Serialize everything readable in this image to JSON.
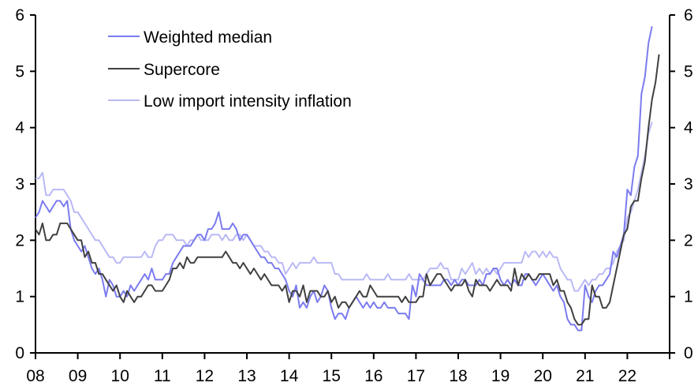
{
  "chart_data": {
    "type": "line",
    "title": "",
    "xlabel": "",
    "ylabel": "",
    "ylim": [
      0,
      6
    ],
    "y_ticks": [
      "0",
      "1",
      "2",
      "3",
      "4",
      "5",
      "6"
    ],
    "y_ticks_right": [
      "0",
      "1",
      "2",
      "3",
      "4",
      "5",
      "6"
    ],
    "x_tick_labels": [
      "08",
      "09",
      "10",
      "11",
      "12",
      "13",
      "14",
      "15",
      "16",
      "17",
      "18",
      "19",
      "20",
      "21",
      "22"
    ],
    "x_range": [
      2008,
      2023
    ],
    "x_start": 2008.0,
    "x_step_months": 1,
    "grid": false,
    "legend_position": "top-left",
    "series": [
      {
        "name": "Weighted median",
        "color": "#7B7BEF",
        "values": [
          2.4,
          2.5,
          2.7,
          2.6,
          2.5,
          2.6,
          2.7,
          2.7,
          2.6,
          2.7,
          2.2,
          2.0,
          1.9,
          1.8,
          1.9,
          1.7,
          1.5,
          1.4,
          1.5,
          1.3,
          1.0,
          1.3,
          1.2,
          1.0,
          1.0,
          1.1,
          1.0,
          1.2,
          1.1,
          1.2,
          1.3,
          1.4,
          1.3,
          1.5,
          1.3,
          1.3,
          1.3,
          1.4,
          1.4,
          1.6,
          1.7,
          1.8,
          1.9,
          1.9,
          1.9,
          2.0,
          2.1,
          2.1,
          2.0,
          2.2,
          2.2,
          2.3,
          2.5,
          2.2,
          2.2,
          2.2,
          2.3,
          2.2,
          2.0,
          2.1,
          2.1,
          2.0,
          1.9,
          1.8,
          1.7,
          1.7,
          1.6,
          1.6,
          1.5,
          1.5,
          1.4,
          1.3,
          1.1,
          1.0,
          1.2,
          0.8,
          0.9,
          0.8,
          1.0,
          1.1,
          0.9,
          1.0,
          1.2,
          1.1,
          0.8,
          0.6,
          0.7,
          0.7,
          0.6,
          0.8,
          0.9,
          1.0,
          0.9,
          0.8,
          0.9,
          0.8,
          0.9,
          0.8,
          0.8,
          0.9,
          0.8,
          0.8,
          0.8,
          0.7,
          0.7,
          0.7,
          0.6,
          1.2,
          1.0,
          1.4,
          1.3,
          1.2,
          1.2,
          1.2,
          1.2,
          1.2,
          1.3,
          1.3,
          1.2,
          1.3,
          1.2,
          1.3,
          1.3,
          1.2,
          1.2,
          1.2,
          1.3,
          1.2,
          1.4,
          1.4,
          1.5,
          1.5,
          1.3,
          1.2,
          1.3,
          1.2,
          1.3,
          1.2,
          1.2,
          1.4,
          1.4,
          1.3,
          1.2,
          1.3,
          1.4,
          1.3,
          1.2,
          1.1,
          1.2,
          1.0,
          0.9,
          0.6,
          0.5,
          0.5,
          0.4,
          0.4,
          1.2,
          1.0,
          0.9,
          1.1,
          1.2,
          1.2,
          1.3,
          1.4,
          1.8,
          1.7,
          1.9,
          2.1,
          2.9,
          2.8,
          3.3,
          3.5,
          4.6,
          4.9,
          5.5,
          5.8
        ]
      },
      {
        "name": "Supercore",
        "color": "#404040",
        "values": [
          2.2,
          2.1,
          2.3,
          2.0,
          2.0,
          2.1,
          2.1,
          2.3,
          2.3,
          2.3,
          2.2,
          2.1,
          2.0,
          2.0,
          1.7,
          1.8,
          1.6,
          1.6,
          1.4,
          1.4,
          1.3,
          1.2,
          1.1,
          1.2,
          1.0,
          0.9,
          1.1,
          1.0,
          0.9,
          1.0,
          1.0,
          1.1,
          1.2,
          1.2,
          1.1,
          1.1,
          1.1,
          1.2,
          1.3,
          1.5,
          1.5,
          1.6,
          1.5,
          1.7,
          1.6,
          1.6,
          1.7,
          1.7,
          1.7,
          1.7,
          1.7,
          1.7,
          1.7,
          1.7,
          1.8,
          1.7,
          1.6,
          1.6,
          1.5,
          1.6,
          1.5,
          1.4,
          1.5,
          1.4,
          1.3,
          1.4,
          1.3,
          1.2,
          1.2,
          1.2,
          1.1,
          1.2,
          0.9,
          1.1,
          1.1,
          1.0,
          1.2,
          0.9,
          1.1,
          1.1,
          1.1,
          1.0,
          1.0,
          1.1,
          0.9,
          1.0,
          0.8,
          0.9,
          0.9,
          0.8,
          0.9,
          1.0,
          1.1,
          1.0,
          1.0,
          1.2,
          1.1,
          1.0,
          1.0,
          1.0,
          1.0,
          1.0,
          1.0,
          1.0,
          0.9,
          1.0,
          0.9,
          0.9,
          0.9,
          1.0,
          1.0,
          1.4,
          1.2,
          1.3,
          1.4,
          1.4,
          1.3,
          1.2,
          1.1,
          1.2,
          1.2,
          1.2,
          1.3,
          1.1,
          1.0,
          1.3,
          1.2,
          1.2,
          1.2,
          1.1,
          1.2,
          1.3,
          1.2,
          1.2,
          1.2,
          1.1,
          1.5,
          1.2,
          1.4,
          1.3,
          1.4,
          1.3,
          1.3,
          1.4,
          1.4,
          1.4,
          1.4,
          1.2,
          1.3,
          1.1,
          1.1,
          0.9,
          0.8,
          0.6,
          0.5,
          0.5,
          0.6,
          0.6,
          1.2,
          1.0,
          1.0,
          0.8,
          0.8,
          0.9,
          1.2,
          1.5,
          1.8,
          2.1,
          2.2,
          2.6,
          2.7,
          2.7,
          3.1,
          3.4,
          4.0,
          4.5,
          4.8,
          5.3
        ]
      },
      {
        "name": "Low import intensity inflation",
        "color": "#B9B9F6",
        "values": [
          3.1,
          3.1,
          3.2,
          2.8,
          2.8,
          2.9,
          2.9,
          2.9,
          2.9,
          2.8,
          2.7,
          2.5,
          2.5,
          2.4,
          2.3,
          2.2,
          2.1,
          2.0,
          2.0,
          1.9,
          1.8,
          1.7,
          1.7,
          1.6,
          1.6,
          1.7,
          1.7,
          1.7,
          1.7,
          1.7,
          1.7,
          1.8,
          1.7,
          1.7,
          1.9,
          2.0,
          2.0,
          2.1,
          2.1,
          2.1,
          2.0,
          2.0,
          2.0,
          1.9,
          2.0,
          2.0,
          2.1,
          2.0,
          2.0,
          2.0,
          2.1,
          2.1,
          2.1,
          2.0,
          2.1,
          2.0,
          2.0,
          2.1,
          2.1,
          2.0,
          2.1,
          2.0,
          1.9,
          1.9,
          1.9,
          1.8,
          1.8,
          1.7,
          1.7,
          1.6,
          1.6,
          1.4,
          1.5,
          1.6,
          1.5,
          1.6,
          1.6,
          1.6,
          1.6,
          1.7,
          1.6,
          1.6,
          1.6,
          1.6,
          1.6,
          1.4,
          1.4,
          1.3,
          1.3,
          1.3,
          1.3,
          1.3,
          1.3,
          1.3,
          1.4,
          1.3,
          1.3,
          1.3,
          1.3,
          1.3,
          1.4,
          1.3,
          1.3,
          1.3,
          1.3,
          1.3,
          1.4,
          1.3,
          1.3,
          1.3,
          1.3,
          1.4,
          1.5,
          1.5,
          1.5,
          1.6,
          1.5,
          1.5,
          1.3,
          1.3,
          1.3,
          1.5,
          1.4,
          1.5,
          1.6,
          1.4,
          1.5,
          1.4,
          1.5,
          1.4,
          1.5,
          1.4,
          1.5,
          1.6,
          1.6,
          1.6,
          1.6,
          1.6,
          1.6,
          1.8,
          1.7,
          1.8,
          1.8,
          1.7,
          1.8,
          1.7,
          1.8,
          1.7,
          1.7,
          1.5,
          1.4,
          1.3,
          1.3,
          1.1,
          1.1,
          1.2,
          1.3,
          1.2,
          1.3,
          1.3,
          1.4,
          1.4,
          1.5,
          1.5,
          1.6,
          1.8,
          1.9,
          2.0,
          2.4,
          2.5,
          2.7,
          2.9,
          3.2,
          3.5,
          3.9,
          4.1
        ]
      }
    ]
  }
}
